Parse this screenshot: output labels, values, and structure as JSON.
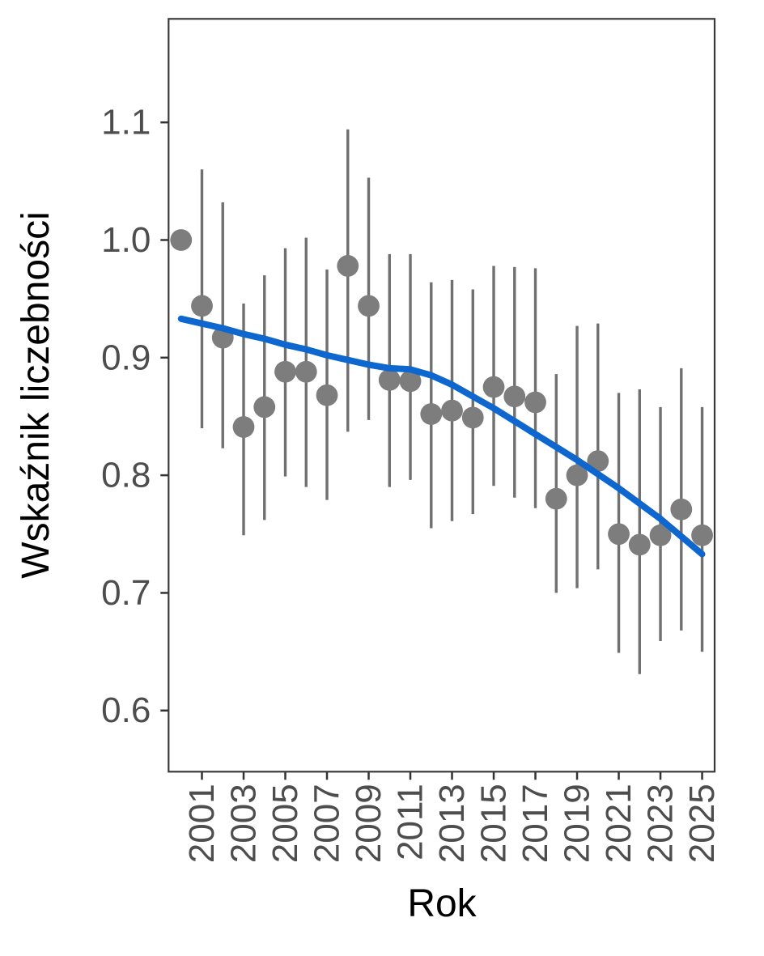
{
  "chart_data": {
    "type": "scatter",
    "title": "",
    "xlabel": "Rok",
    "ylabel": "Wskaźnik liczebności",
    "x_tick_labels": [
      "2001",
      "2003",
      "2005",
      "2007",
      "2009",
      "2011",
      "2013",
      "2015",
      "2017",
      "2019",
      "2021",
      "2023",
      "2025"
    ],
    "y_tick_labels": [
      "1.1",
      "1.0",
      "0.9",
      "0.8",
      "0.7",
      "0.6"
    ],
    "x_tick_values": [
      2001,
      2003,
      2005,
      2007,
      2009,
      2011,
      2013,
      2015,
      2017,
      2019,
      2021,
      2023,
      2025
    ],
    "y_tick_values": [
      1.1,
      1.0,
      0.9,
      0.8,
      0.7,
      0.6
    ],
    "xlim": [
      1999.4,
      2025.6
    ],
    "ylim": [
      0.548,
      1.188
    ],
    "grid": false,
    "legend": false,
    "series": [
      {
        "name": "abundance-index-points-with-ci",
        "type": "scatter-errorbar",
        "x": [
          2000,
          2001,
          2002,
          2003,
          2004,
          2005,
          2006,
          2007,
          2008,
          2009,
          2010,
          2011,
          2012,
          2013,
          2014,
          2015,
          2016,
          2017,
          2018,
          2019,
          2020,
          2021,
          2022,
          2023,
          2024,
          2025
        ],
        "y": [
          1.0,
          0.944,
          0.917,
          0.841,
          0.858,
          0.888,
          0.888,
          0.868,
          0.978,
          0.944,
          0.881,
          0.88,
          0.852,
          0.855,
          0.849,
          0.875,
          0.867,
          0.862,
          0.78,
          0.8,
          0.812,
          0.75,
          0.741,
          0.749,
          0.771,
          0.749
        ],
        "ci_low": [
          null,
          0.84,
          0.823,
          0.749,
          0.762,
          0.799,
          0.79,
          0.779,
          0.837,
          0.847,
          0.79,
          0.796,
          0.755,
          0.761,
          0.767,
          0.791,
          0.781,
          0.772,
          0.7,
          0.704,
          0.72,
          0.649,
          0.631,
          0.659,
          0.668,
          0.65
        ],
        "ci_high": [
          null,
          1.06,
          1.032,
          0.946,
          0.97,
          0.993,
          1.002,
          0.975,
          1.094,
          1.053,
          0.988,
          0.988,
          0.964,
          0.966,
          0.958,
          0.978,
          0.977,
          0.976,
          0.886,
          0.927,
          0.929,
          0.87,
          0.873,
          0.858,
          0.891,
          0.858
        ]
      },
      {
        "name": "smoothed-trend-line",
        "type": "line",
        "x": [
          2000,
          2001,
          2002,
          2003,
          2004,
          2005,
          2006,
          2007,
          2008,
          2009,
          2010,
          2011,
          2012,
          2013,
          2014,
          2015,
          2016,
          2017,
          2018,
          2019,
          2020,
          2021,
          2022,
          2023,
          2024,
          2025
        ],
        "y": [
          0.933,
          0.929,
          0.925,
          0.92,
          0.916,
          0.911,
          0.907,
          0.902,
          0.898,
          0.894,
          0.891,
          0.89,
          0.885,
          0.877,
          0.867,
          0.857,
          0.846,
          0.835,
          0.824,
          0.813,
          0.801,
          0.789,
          0.776,
          0.763,
          0.748,
          0.733
        ]
      }
    ],
    "colors": {
      "point": "#7d7d7d",
      "errorbar": "#707070",
      "trend": "#0d67ce",
      "tick_label": "#4d4d4d",
      "axis_line": "#333333",
      "panel_border": "#3a3a3a",
      "axis_title": "#000000",
      "background": "#ffffff"
    }
  }
}
